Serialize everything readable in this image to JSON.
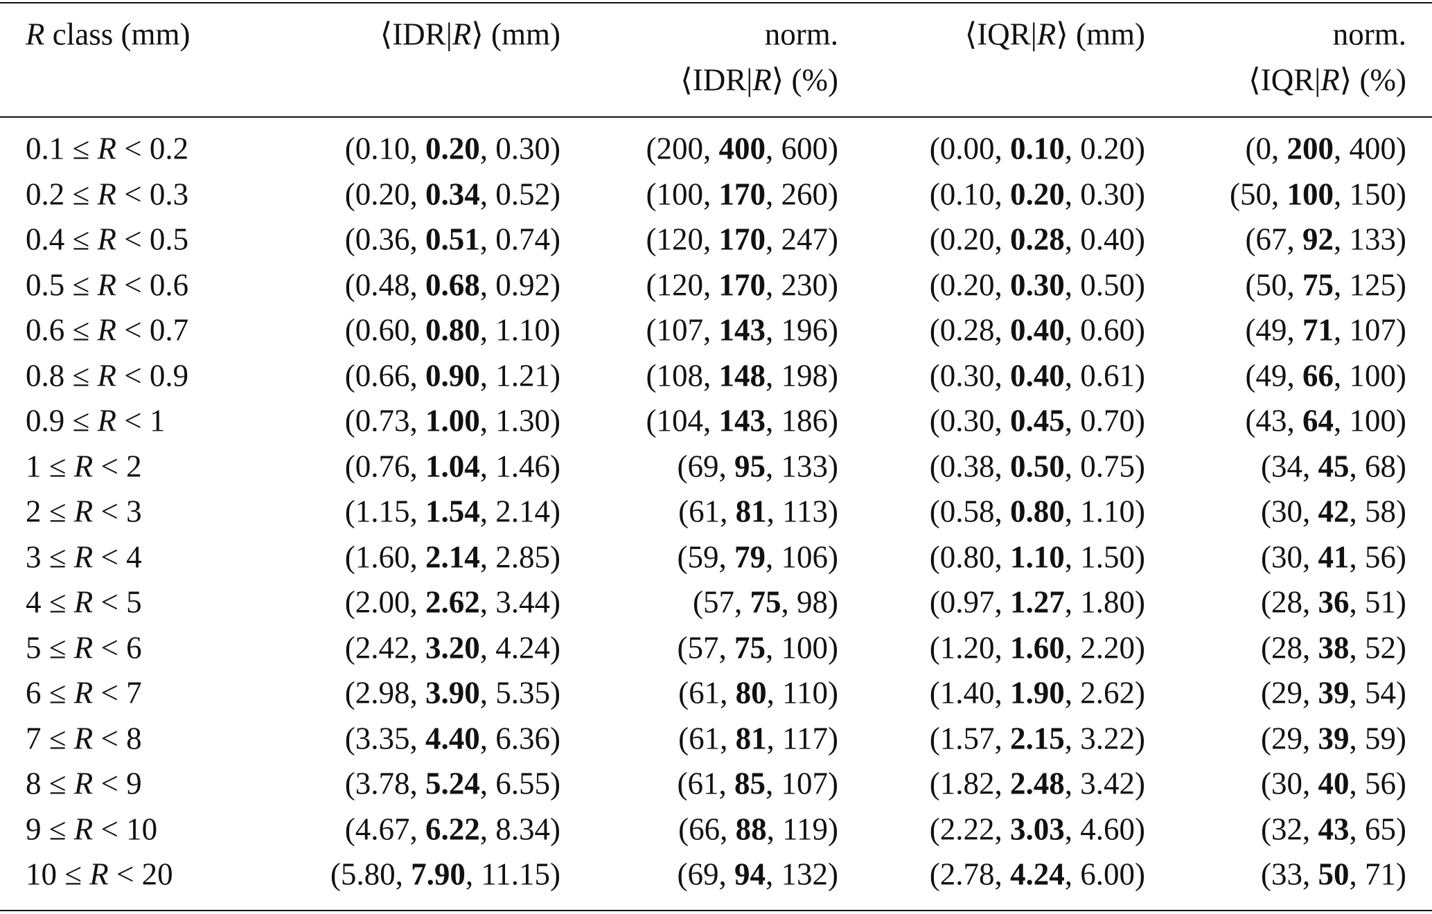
{
  "table": {
    "columns": [
      [
        [
          {
            "i": "R"
          },
          " class (mm)"
        ]
      ],
      [
        [
          "⟨IDR|",
          {
            "i": "R"
          },
          "⟩ (mm)"
        ]
      ],
      [
        [
          "norm."
        ],
        [
          "⟨IDR|",
          {
            "i": "R"
          },
          "⟩ (%)"
        ]
      ],
      [
        [
          "⟨IQR|",
          {
            "i": "R"
          },
          "⟩ (mm)"
        ]
      ],
      [
        [
          "norm."
        ],
        [
          "⟨IQR|",
          {
            "i": "R"
          },
          "⟩ (%)"
        ]
      ]
    ],
    "rows": [
      [
        [
          "0.1 ≤ ",
          {
            "i": "R"
          },
          " < 0.2"
        ],
        [
          "(0.10, ",
          {
            "b": "0.20"
          },
          ", 0.30)"
        ],
        [
          "(200, ",
          {
            "b": "400"
          },
          ", 600)"
        ],
        [
          "(0.00, ",
          {
            "b": "0.10"
          },
          ", 0.20)"
        ],
        [
          "(0, ",
          {
            "b": "200"
          },
          ", 400)"
        ]
      ],
      [
        [
          "0.2 ≤ ",
          {
            "i": "R"
          },
          " < 0.3"
        ],
        [
          "(0.20, ",
          {
            "b": "0.34"
          },
          ", 0.52)"
        ],
        [
          "(100, ",
          {
            "b": "170"
          },
          ", 260)"
        ],
        [
          "(0.10, ",
          {
            "b": "0.20"
          },
          ", 0.30)"
        ],
        [
          "(50, ",
          {
            "b": "100"
          },
          ", 150)"
        ]
      ],
      [
        [
          "0.4 ≤ ",
          {
            "i": "R"
          },
          " < 0.5"
        ],
        [
          "(0.36, ",
          {
            "b": "0.51"
          },
          ", 0.74)"
        ],
        [
          "(120, ",
          {
            "b": "170"
          },
          ", 247)"
        ],
        [
          "(0.20, ",
          {
            "b": "0.28"
          },
          ", 0.40)"
        ],
        [
          "(67, ",
          {
            "b": "92"
          },
          ", 133)"
        ]
      ],
      [
        [
          "0.5 ≤ ",
          {
            "i": "R"
          },
          " < 0.6"
        ],
        [
          "(0.48, ",
          {
            "b": "0.68"
          },
          ", 0.92)"
        ],
        [
          "(120, ",
          {
            "b": "170"
          },
          ", 230)"
        ],
        [
          "(0.20, ",
          {
            "b": "0.30"
          },
          ", 0.50)"
        ],
        [
          "(50, ",
          {
            "b": "75"
          },
          ", 125)"
        ]
      ],
      [
        [
          "0.6 ≤ ",
          {
            "i": "R"
          },
          " < 0.7"
        ],
        [
          "(0.60, ",
          {
            "b": "0.80"
          },
          ", 1.10)"
        ],
        [
          "(107, ",
          {
            "b": "143"
          },
          ", 196)"
        ],
        [
          "(0.28, ",
          {
            "b": "0.40"
          },
          ", 0.60)"
        ],
        [
          "(49, ",
          {
            "b": "71"
          },
          ", 107)"
        ]
      ],
      [
        [
          "0.8 ≤ ",
          {
            "i": "R"
          },
          " < 0.9"
        ],
        [
          "(0.66, ",
          {
            "b": "0.90"
          },
          ", 1.21)"
        ],
        [
          "(108, ",
          {
            "b": "148"
          },
          ", 198)"
        ],
        [
          "(0.30, ",
          {
            "b": "0.40"
          },
          ", 0.61)"
        ],
        [
          "(49, ",
          {
            "b": "66"
          },
          ", 100)"
        ]
      ],
      [
        [
          "0.9 ≤ ",
          {
            "i": "R"
          },
          " < 1"
        ],
        [
          "(0.73, ",
          {
            "b": "1.00"
          },
          ", 1.30)"
        ],
        [
          "(104, ",
          {
            "b": "143"
          },
          ", 186)"
        ],
        [
          "(0.30, ",
          {
            "b": "0.45"
          },
          ", 0.70)"
        ],
        [
          "(43, ",
          {
            "b": "64"
          },
          ", 100)"
        ]
      ],
      [
        [
          "1 ≤ ",
          {
            "i": "R"
          },
          " < 2"
        ],
        [
          "(0.76, ",
          {
            "b": "1.04"
          },
          ", 1.46)"
        ],
        [
          "(69, ",
          {
            "b": "95"
          },
          ", 133)"
        ],
        [
          "(0.38, ",
          {
            "b": "0.50"
          },
          ", 0.75)"
        ],
        [
          "(34, ",
          {
            "b": "45"
          },
          ", 68)"
        ]
      ],
      [
        [
          "2 ≤ ",
          {
            "i": "R"
          },
          " < 3"
        ],
        [
          "(1.15, ",
          {
            "b": "1.54"
          },
          ", 2.14)"
        ],
        [
          "(61, ",
          {
            "b": "81"
          },
          ", 113)"
        ],
        [
          "(0.58, ",
          {
            "b": "0.80"
          },
          ", 1.10)"
        ],
        [
          "(30, ",
          {
            "b": "42"
          },
          ", 58)"
        ]
      ],
      [
        [
          "3 ≤ ",
          {
            "i": "R"
          },
          " < 4"
        ],
        [
          "(1.60, ",
          {
            "b": "2.14"
          },
          ", 2.85)"
        ],
        [
          "(59, ",
          {
            "b": "79"
          },
          ", 106)"
        ],
        [
          "(0.80, ",
          {
            "b": "1.10"
          },
          ", 1.50)"
        ],
        [
          "(30, ",
          {
            "b": "41"
          },
          ", 56)"
        ]
      ],
      [
        [
          "4 ≤ ",
          {
            "i": "R"
          },
          " < 5"
        ],
        [
          "(2.00, ",
          {
            "b": "2.62"
          },
          ", 3.44)"
        ],
        [
          "(57, ",
          {
            "b": "75"
          },
          ", 98)"
        ],
        [
          "(0.97, ",
          {
            "b": "1.27"
          },
          ", 1.80)"
        ],
        [
          "(28, ",
          {
            "b": "36"
          },
          ", 51)"
        ]
      ],
      [
        [
          "5 ≤ ",
          {
            "i": "R"
          },
          " < 6"
        ],
        [
          "(2.42, ",
          {
            "b": "3.20"
          },
          ", 4.24)"
        ],
        [
          "(57, ",
          {
            "b": "75"
          },
          ", 100)"
        ],
        [
          "(1.20, ",
          {
            "b": "1.60"
          },
          ", 2.20)"
        ],
        [
          "(28, ",
          {
            "b": "38"
          },
          ", 52)"
        ]
      ],
      [
        [
          "6 ≤ ",
          {
            "i": "R"
          },
          " < 7"
        ],
        [
          "(2.98, ",
          {
            "b": "3.90"
          },
          ", 5.35)"
        ],
        [
          "(61, ",
          {
            "b": "80"
          },
          ", 110)"
        ],
        [
          "(1.40, ",
          {
            "b": "1.90"
          },
          ", 2.62)"
        ],
        [
          "(29, ",
          {
            "b": "39"
          },
          ", 54)"
        ]
      ],
      [
        [
          "7 ≤ ",
          {
            "i": "R"
          },
          " < 8"
        ],
        [
          "(3.35, ",
          {
            "b": "4.40"
          },
          ", 6.36)"
        ],
        [
          "(61, ",
          {
            "b": "81"
          },
          ", 117)"
        ],
        [
          "(1.57, ",
          {
            "b": "2.15"
          },
          ", 3.22)"
        ],
        [
          "(29, ",
          {
            "b": "39"
          },
          ", 59)"
        ]
      ],
      [
        [
          "8 ≤ ",
          {
            "i": "R"
          },
          " < 9"
        ],
        [
          "(3.78, ",
          {
            "b": "5.24"
          },
          ", 6.55)"
        ],
        [
          "(61, ",
          {
            "b": "85"
          },
          ", 107)"
        ],
        [
          "(1.82, ",
          {
            "b": "2.48"
          },
          ", 3.42)"
        ],
        [
          "(30, ",
          {
            "b": "40"
          },
          ", 56)"
        ]
      ],
      [
        [
          "9 ≤ ",
          {
            "i": "R"
          },
          " < 10"
        ],
        [
          "(4.67, ",
          {
            "b": "6.22"
          },
          ", 8.34)"
        ],
        [
          "(66, ",
          {
            "b": "88"
          },
          ", 119)"
        ],
        [
          "(2.22, ",
          {
            "b": "3.03"
          },
          ", 4.60)"
        ],
        [
          "(32, ",
          {
            "b": "43"
          },
          ", 65)"
        ]
      ],
      [
        [
          "10 ≤ ",
          {
            "i": "R"
          },
          " < 20"
        ],
        [
          "(5.80, ",
          {
            "b": "7.90"
          },
          ", 11.15)"
        ],
        [
          "(69, ",
          {
            "b": "94"
          },
          ", 132)"
        ],
        [
          "(2.78, ",
          {
            "b": "4.24"
          },
          ", 6.00)"
        ],
        [
          "(33, ",
          {
            "b": "50"
          },
          ", 71)"
        ]
      ]
    ]
  }
}
